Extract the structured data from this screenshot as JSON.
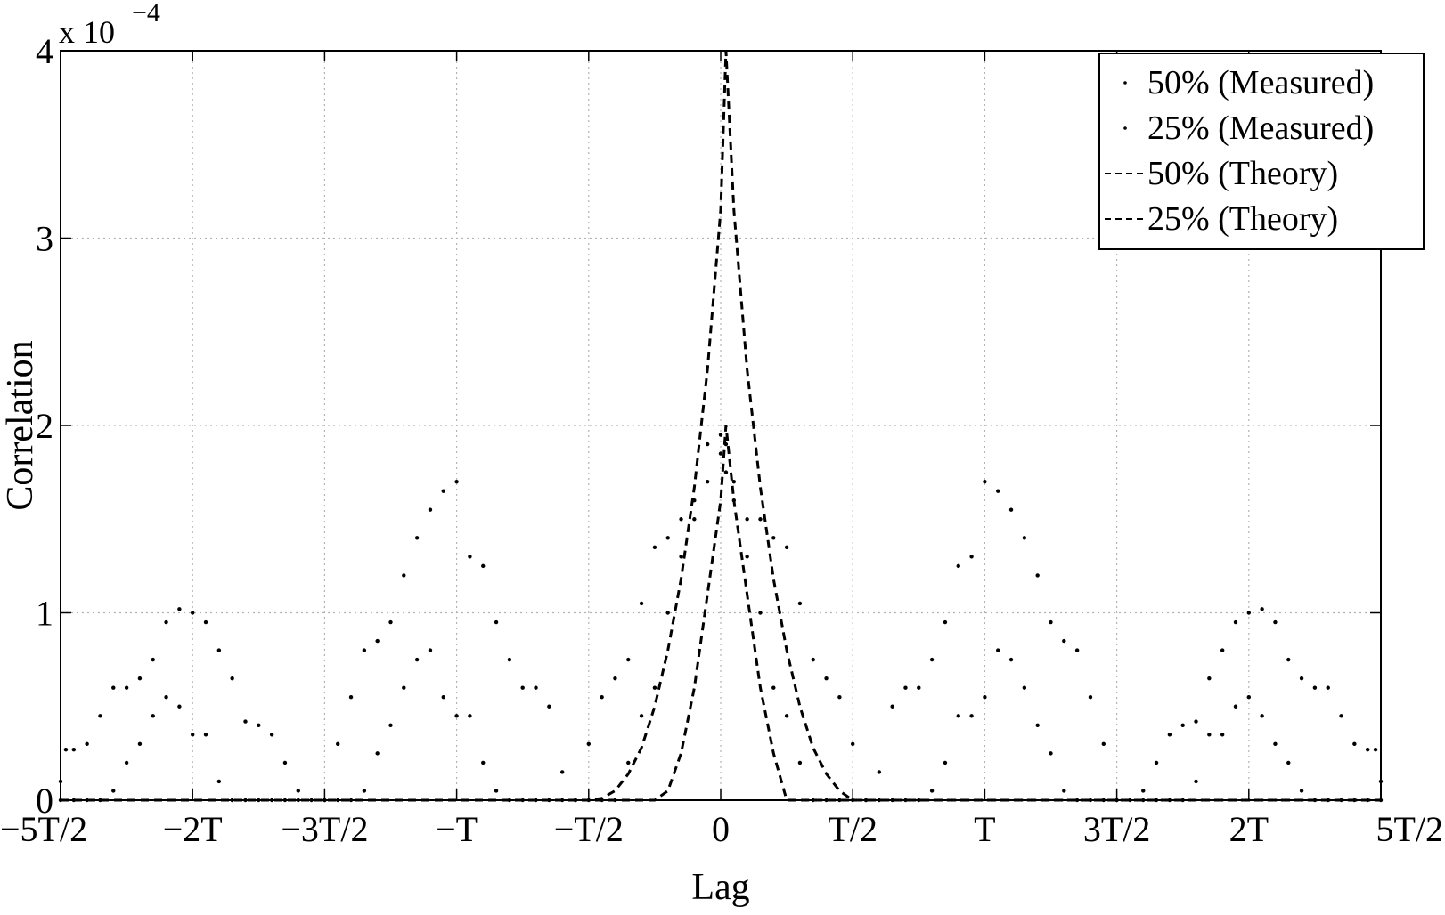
{
  "chart_data": {
    "type": "scatter",
    "title": "",
    "xlabel": "Lag",
    "ylabel": "Correlation",
    "y_exponent_label": "x 10",
    "y_exponent_power": "−4",
    "xlim": [
      -2.5,
      2.5
    ],
    "ylim": [
      0,
      4
    ],
    "y_unit_scale": 0.0001,
    "x_ticks": [
      -2.5,
      -2,
      -1.5,
      -1,
      -0.5,
      0,
      0.5,
      1,
      1.5,
      2,
      2.5
    ],
    "x_tick_labels": [
      "−5T/2",
      "−2T",
      "−3T/2",
      "−T",
      "−T/2",
      "0",
      "T/2",
      "T",
      "3T/2",
      "2T",
      "5T/2"
    ],
    "y_ticks": [
      0,
      1,
      2,
      3,
      4
    ],
    "y_tick_labels": [
      "0",
      "1",
      "2",
      "3",
      "4"
    ],
    "grid": true,
    "legend_position": "top-right",
    "legend": [
      {
        "label": "50% (Measured)",
        "style": "dots"
      },
      {
        "label": "25% (Measured)",
        "style": "dots"
      },
      {
        "label": "50% (Theory)",
        "style": "dashed"
      },
      {
        "label": "25% (Theory)",
        "style": "dashed"
      }
    ],
    "series": [
      {
        "name": "50% (Measured)",
        "style": "dots",
        "x": [
          -2.5,
          -2.48,
          -2.45,
          -2.4,
          -2.35,
          -2.3,
          -2.25,
          -2.2,
          -2.15,
          -2.1,
          -2.05,
          -2.0,
          -1.95,
          -1.9,
          -1.85,
          -1.8,
          -1.75,
          -1.7,
          -1.65,
          -1.6,
          -1.5,
          -1.45,
          -1.4,
          -1.35,
          -1.3,
          -1.25,
          -1.2,
          -1.15,
          -1.1,
          -1.05,
          -1.0,
          -0.95,
          -0.9,
          -0.85,
          -0.8,
          -0.75,
          -0.7,
          -0.65,
          -0.6,
          -0.55,
          -0.5,
          -0.45,
          -0.4,
          -0.35,
          -0.3,
          -0.25,
          -0.2,
          -0.15,
          -0.1,
          -0.05,
          0.0,
          0.02,
          0.05,
          0.1,
          0.15,
          0.2,
          0.25,
          0.3,
          0.35,
          0.4,
          0.45,
          0.5,
          0.55,
          0.6,
          0.65,
          0.7,
          0.75,
          0.8,
          0.85,
          0.9,
          0.95,
          1.0,
          1.05,
          1.1,
          1.15,
          1.2,
          1.25,
          1.3,
          1.35,
          1.4,
          1.45,
          1.5,
          1.6,
          1.65,
          1.7,
          1.75,
          1.8,
          1.85,
          1.9,
          1.95,
          2.0,
          2.05,
          2.1,
          2.15,
          2.2,
          2.25,
          2.3,
          2.35,
          2.4,
          2.45,
          2.48,
          2.5
        ],
        "y": [
          0.1,
          0.27,
          0.27,
          0.3,
          0.45,
          0.6,
          0.6,
          0.65,
          0.75,
          0.95,
          1.02,
          1.0,
          0.95,
          0.8,
          0.65,
          0.42,
          0.4,
          0.35,
          0.2,
          0.05,
          0.0,
          0.3,
          0.55,
          0.8,
          0.85,
          0.95,
          1.2,
          1.4,
          1.55,
          1.65,
          1.7,
          1.3,
          1.25,
          0.95,
          0.75,
          0.6,
          0.6,
          0.5,
          0.15,
          0.0,
          0.3,
          0.55,
          0.65,
          0.75,
          1.05,
          1.35,
          1.4,
          1.5,
          1.5,
          1.7,
          1.85,
          1.75,
          1.7,
          1.5,
          1.5,
          1.4,
          1.35,
          1.05,
          0.75,
          0.65,
          0.55,
          0.3,
          0.0,
          0.15,
          0.5,
          0.6,
          0.6,
          0.75,
          0.95,
          1.25,
          1.3,
          1.7,
          1.65,
          1.55,
          1.4,
          1.2,
          0.95,
          0.85,
          0.8,
          0.55,
          0.3,
          0.0,
          0.05,
          0.2,
          0.35,
          0.4,
          0.42,
          0.65,
          0.8,
          0.95,
          1.0,
          1.02,
          0.95,
          0.75,
          0.65,
          0.6,
          0.6,
          0.45,
          0.3,
          0.27,
          0.27,
          0.1
        ]
      },
      {
        "name": "25% (Measured)",
        "style": "dots",
        "x": [
          -2.5,
          -2.45,
          -2.4,
          -2.35,
          -2.3,
          -2.25,
          -2.2,
          -2.15,
          -2.1,
          -2.05,
          -2.0,
          -1.95,
          -1.9,
          -1.85,
          -1.8,
          -1.75,
          -1.7,
          -1.65,
          -1.6,
          -1.55,
          -1.5,
          -1.45,
          -1.4,
          -1.35,
          -1.3,
          -1.25,
          -1.2,
          -1.15,
          -1.1,
          -1.05,
          -1.0,
          -0.95,
          -0.9,
          -0.85,
          -0.8,
          -0.75,
          -0.7,
          -0.65,
          -0.6,
          -0.55,
          -0.5,
          -0.45,
          -0.4,
          -0.35,
          -0.3,
          -0.25,
          -0.2,
          -0.15,
          -0.1,
          -0.05,
          0.0,
          0.02,
          0.05,
          0.1,
          0.15,
          0.2,
          0.25,
          0.3,
          0.35,
          0.4,
          0.45,
          0.5,
          0.55,
          0.6,
          0.65,
          0.7,
          0.75,
          0.8,
          0.85,
          0.9,
          0.95,
          1.0,
          1.05,
          1.1,
          1.15,
          1.2,
          1.25,
          1.3,
          1.35,
          1.4,
          1.45,
          1.5,
          1.55,
          1.6,
          1.65,
          1.7,
          1.75,
          1.8,
          1.85,
          1.9,
          1.95,
          2.0,
          2.05,
          2.1,
          2.15,
          2.2,
          2.25,
          2.3,
          2.35,
          2.4,
          2.45,
          2.5
        ],
        "y": [
          0,
          0,
          0,
          0,
          0.05,
          0.2,
          0.3,
          0.45,
          0.55,
          0.5,
          0.35,
          0.35,
          0.1,
          0.0,
          0,
          0,
          0,
          0,
          0,
          0,
          0,
          0,
          0,
          0.05,
          0.25,
          0.4,
          0.6,
          0.75,
          0.8,
          0.55,
          0.45,
          0.45,
          0.2,
          0.05,
          0.0,
          0,
          0,
          0,
          0,
          0,
          0,
          0,
          0.0,
          0.2,
          0.45,
          0.6,
          1.0,
          1.3,
          1.6,
          1.9,
          1.95,
          1.9,
          1.6,
          1.3,
          1.0,
          0.6,
          0.45,
          0.2,
          0.0,
          0,
          0,
          0,
          0,
          0,
          0,
          0,
          0.0,
          0.05,
          0.2,
          0.45,
          0.45,
          0.55,
          0.8,
          0.75,
          0.6,
          0.4,
          0.25,
          0.05,
          0,
          0,
          0,
          0,
          0,
          0,
          0,
          0,
          0.0,
          0.1,
          0.35,
          0.35,
          0.5,
          0.55,
          0.45,
          0.3,
          0.2,
          0.05,
          0,
          0,
          0,
          0,
          0,
          0
        ]
      },
      {
        "name": "50% (Theory)",
        "style": "dashed",
        "x": [
          -2.5,
          -0.5,
          -0.45,
          -0.4,
          -0.35,
          -0.3,
          -0.25,
          -0.2,
          -0.15,
          -0.1,
          -0.05,
          0.0,
          0.02,
          0.05,
          0.1,
          0.15,
          0.2,
          0.25,
          0.3,
          0.35,
          0.4,
          0.45,
          0.5,
          2.5
        ],
        "y": [
          0,
          0,
          0.01,
          0.05,
          0.14,
          0.28,
          0.5,
          0.8,
          1.18,
          1.67,
          2.3,
          3.15,
          4.0,
          3.15,
          2.3,
          1.67,
          1.18,
          0.8,
          0.5,
          0.28,
          0.14,
          0.05,
          0.0,
          0
        ]
      },
      {
        "name": "25% (Theory)",
        "style": "dashed",
        "x": [
          -2.5,
          -0.25,
          -0.2,
          -0.15,
          -0.1,
          -0.05,
          0.0,
          0.02,
          0.05,
          0.1,
          0.15,
          0.2,
          0.25,
          2.5
        ],
        "y": [
          0,
          0,
          0.05,
          0.25,
          0.6,
          1.1,
          1.6,
          2.0,
          1.6,
          1.1,
          0.6,
          0.25,
          0.0,
          0
        ]
      }
    ]
  }
}
